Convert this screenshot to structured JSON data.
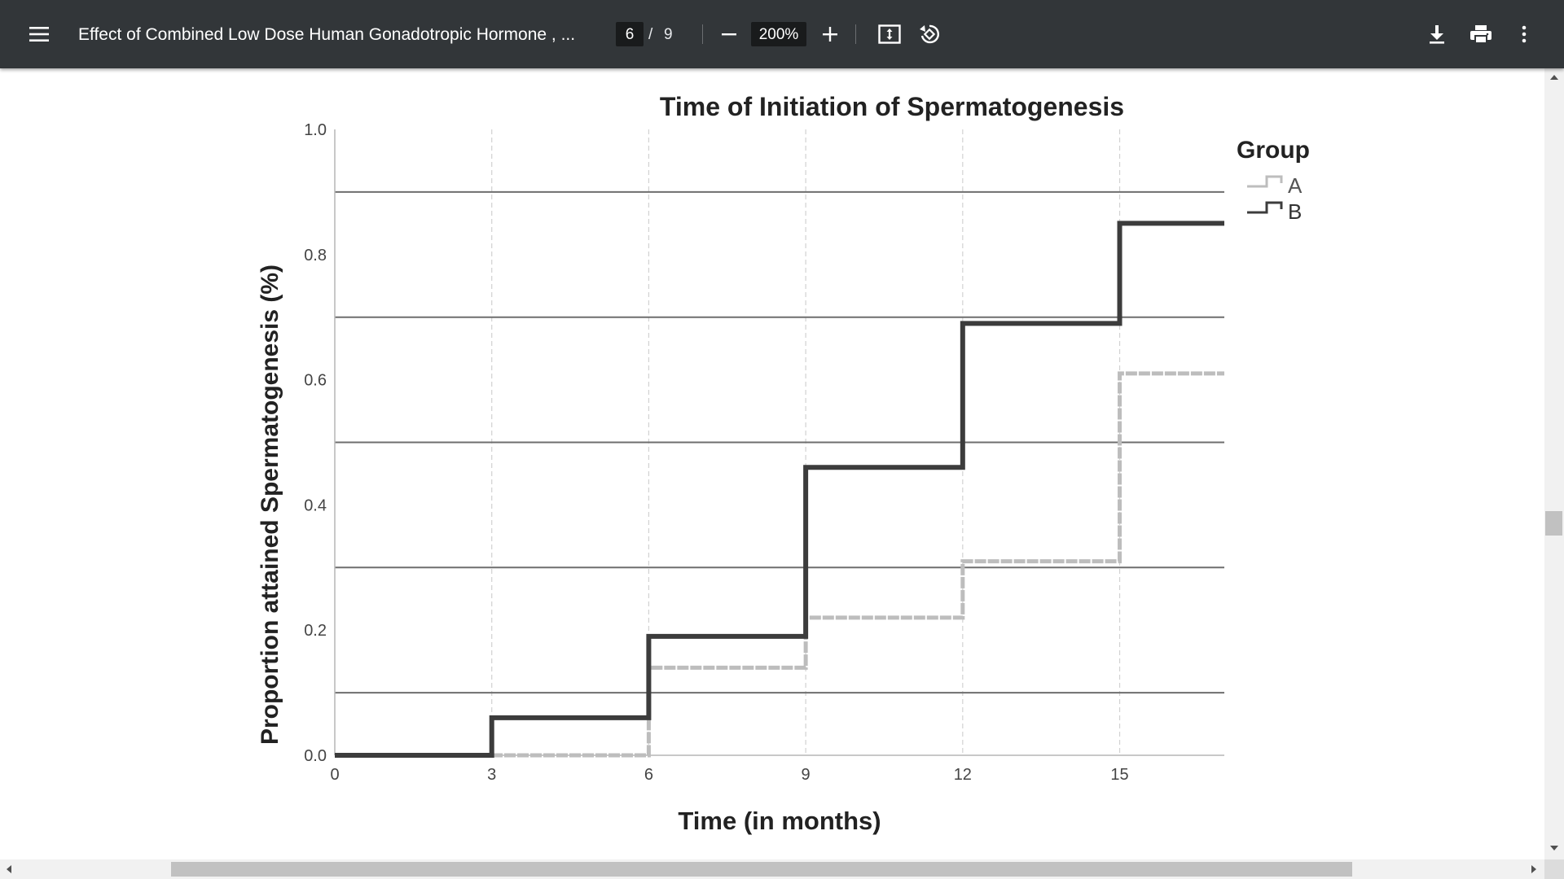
{
  "toolbar": {
    "title": "Effect of Combined Low Dose Human Gonadotropic Hormone , ...",
    "current_page": "6",
    "page_separator": "/",
    "total_pages": "9",
    "zoom": "200%",
    "icons": [
      "menu-icon",
      "zoom-out-icon",
      "zoom-in-icon",
      "fit-page-icon",
      "rotate-icon",
      "download-icon",
      "print-icon",
      "more-options-icon"
    ],
    "background_color": "#323639"
  },
  "chart_data": {
    "type": "line",
    "step": true,
    "title": "Time of Initiation of Spermatogenesis",
    "xlabel": "Time (in months)",
    "ylabel": "Proportion attained Spermatogenesis (%)",
    "xlim": [
      0,
      17
    ],
    "ylim": [
      0,
      1.0
    ],
    "xticks": [
      0,
      3,
      6,
      9,
      12,
      15
    ],
    "xtick_labels": [
      "0",
      "3",
      "6",
      "9",
      "12",
      "15"
    ],
    "yticks": [
      0.0,
      0.2,
      0.4,
      0.6,
      0.8,
      1.0
    ],
    "ytick_labels": [
      "0.0",
      "0.2",
      "0.4",
      "0.6",
      "0.8",
      "1.0"
    ],
    "reference_lines_y": [
      0.1,
      0.3,
      0.5,
      0.7,
      0.9
    ],
    "vertical_gridlines_x": [
      3,
      6,
      9,
      12,
      15
    ],
    "legend": {
      "title": "Group",
      "position": "right"
    },
    "series": [
      {
        "name": "A",
        "color": "#bdbdbd",
        "x": [
          0,
          6,
          9,
          12,
          15,
          17
        ],
        "y": [
          0.0,
          0.14,
          0.22,
          0.31,
          0.61,
          0.61
        ]
      },
      {
        "name": "B",
        "color": "#3c3c3c",
        "x": [
          0,
          3,
          6,
          9,
          12,
          15,
          17
        ],
        "y": [
          0.0,
          0.06,
          0.19,
          0.46,
          0.69,
          0.85,
          0.85
        ]
      }
    ]
  }
}
